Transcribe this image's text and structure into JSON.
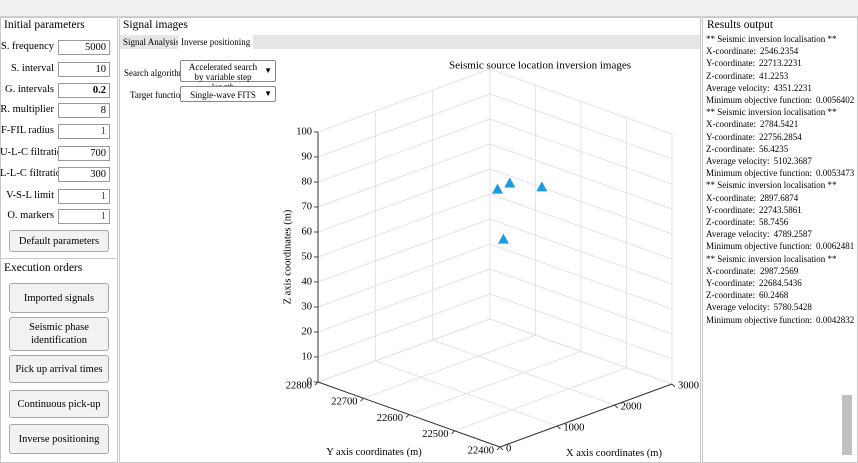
{
  "parameters": {
    "title": "Initial parameters",
    "fields": [
      {
        "label": "S. frequency",
        "value": 5000
      },
      {
        "label": "S. interval",
        "value": 10
      },
      {
        "label": "G. intervals",
        "value": 0.2
      },
      {
        "label": "R. multiplier",
        "value": 8
      },
      {
        "label": "F-FIL radius",
        "value": 1
      },
      {
        "label": "U-L-C filtration",
        "value": 700
      },
      {
        "label": "L-L-C filtration",
        "value": 300
      },
      {
        "label": "V-S-L limit",
        "value": 1
      },
      {
        "label": "O. markers",
        "value": 1
      }
    ],
    "default_button": "Default parameters"
  },
  "execution": {
    "title": "Execution orders",
    "buttons": [
      "Imported signals",
      "Seismic phase identification",
      "Pick up arrival times",
      "Continuous pick-up",
      "Inverse positioning"
    ]
  },
  "signal_images": {
    "title": "Signal images",
    "tabs": [
      "Signal Analysis",
      "Inverse positioning"
    ],
    "search_label": "Search algorithms",
    "search_value": "Accelerated search by variable step length",
    "target_label": "Target functions",
    "target_value": "Single-wave FITS"
  },
  "chart_data": {
    "type": "scatter3d",
    "title": "Seismic source location inversion images",
    "x_label": "X axis coordinates (m)",
    "y_label": "Y axis coordinates (m)",
    "z_label": "Z axis coordinates (m)",
    "xlim": [
      0,
      3000
    ],
    "ylim": [
      22400,
      22800
    ],
    "zlim": [
      0,
      100
    ],
    "xticks": [
      0,
      1000,
      2000,
      3000
    ],
    "yticks": [
      22400,
      22500,
      22600,
      22700,
      22800
    ],
    "zticks": [
      0,
      10,
      20,
      30,
      40,
      50,
      60,
      70,
      80,
      90,
      100
    ],
    "color": "#1a9ae0",
    "grid": true
  },
  "results": {
    "title": "Results output",
    "entries": [
      {
        "heading": "** Seismic inversion localisation **",
        "lines": [
          {
            "label": "X-coordinate:",
            "value": 2546.2354
          },
          {
            "label": "Y-coordinate:",
            "value": 22713.2231
          },
          {
            "label": "Z-coordinate:",
            "value": 41.2253
          },
          {
            "label": "Average velocity:",
            "value": 4351.2231
          },
          {
            "label": "Minimum objective function:",
            "value": 0.0056402
          }
        ]
      },
      {
        "heading": "** Seismic inversion localisation **",
        "lines": [
          {
            "label": "X-coordinate:",
            "value": 2784.5421
          },
          {
            "label": "Y-coordinate:",
            "value": 22756.2854
          },
          {
            "label": "Z-coordinate:",
            "value": 56.4235
          },
          {
            "label": "Average velocity:",
            "value": 5102.3687
          },
          {
            "label": "Minimum objective function:",
            "value": 0.0053473
          }
        ]
      },
      {
        "heading": "** Seismic inversion localisation **",
        "lines": [
          {
            "label": "X-coordinate:",
            "value": 2897.6874
          },
          {
            "label": "Y-coordinate:",
            "value": 22743.5861
          },
          {
            "label": "Z-coordinate:",
            "value": 58.7456
          },
          {
            "label": "Average velocity:",
            "value": 4789.2587
          },
          {
            "label": "Minimum objective function:",
            "value": 0.0062481
          }
        ]
      },
      {
        "heading": "** Seismic inversion localisation **",
        "lines": [
          {
            "label": "X-coordinate:",
            "value": 2987.2569
          },
          {
            "label": "Y-coordinate:",
            "value": 22684.5436
          },
          {
            "label": "Z-coordinate:",
            "value": 60.2468
          },
          {
            "label": "Average velocity:",
            "value": 5780.5428
          },
          {
            "label": "Minimum objective function:",
            "value": 0.0042832
          }
        ]
      }
    ]
  }
}
